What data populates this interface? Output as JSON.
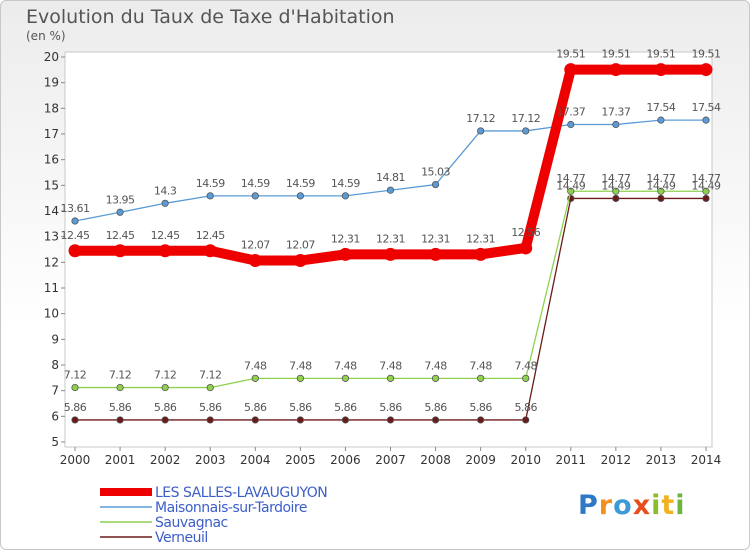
{
  "title": "Evolution du Taux de Taxe d'Habitation",
  "subtitle": "(en %)",
  "logo": "Proxiti",
  "chart_data": {
    "type": "line",
    "title": "Evolution du Taux de Taxe d'Habitation",
    "ylabel": "(en %)",
    "xlabel": "",
    "x": [
      2000,
      2001,
      2002,
      2003,
      2004,
      2005,
      2006,
      2007,
      2008,
      2009,
      2010,
      2011,
      2012,
      2013,
      2014
    ],
    "ylim": [
      5,
      20
    ],
    "yticks": [
      5,
      6,
      7,
      8,
      9,
      10,
      11,
      12,
      13,
      14,
      15,
      16,
      17,
      18,
      19,
      20
    ],
    "grid": false,
    "legend_position": "bottom-left",
    "series": [
      {
        "name": "Verneuil",
        "color": "#6b1a1a",
        "values": [
          5.86,
          5.86,
          5.86,
          5.86,
          5.86,
          5.86,
          5.86,
          5.86,
          5.86,
          5.86,
          5.86,
          14.49,
          14.49,
          14.49,
          14.49
        ],
        "labels": [
          "5.86",
          "5.86",
          "5.86",
          "5.86",
          "5.86",
          "5.86",
          "5.86",
          "5.86",
          "5.86",
          "5.86",
          "5.86",
          "14.49",
          "14.49",
          "14.49",
          "14.49"
        ]
      },
      {
        "name": "Sauvagnac",
        "color": "#8fd14f",
        "values": [
          7.12,
          7.12,
          7.12,
          7.12,
          7.48,
          7.48,
          7.48,
          7.48,
          7.48,
          7.48,
          7.48,
          14.77,
          14.77,
          14.77,
          14.77
        ],
        "labels": [
          "7.12",
          "7.12",
          "7.12",
          "7.12",
          "7.48",
          "7.48",
          "7.48",
          "7.48",
          "7.48",
          "7.48",
          "7.48",
          "14.77",
          "14.77",
          "14.77",
          "14.77"
        ]
      },
      {
        "name": "Maisonnais-sur-Tardoire",
        "color": "#5b9bd5",
        "values": [
          13.61,
          13.95,
          14.3,
          14.59,
          14.59,
          14.59,
          14.59,
          14.81,
          15.03,
          17.12,
          17.12,
          17.37,
          17.37,
          17.54,
          17.54
        ],
        "labels": [
          "13.61",
          "13.95",
          "14.3",
          "14.59",
          "14.59",
          "14.59",
          "14.59",
          "14.81",
          "15.03",
          "17.12",
          "17.12",
          "17.37",
          "17.37",
          "17.54",
          "17.54"
        ]
      },
      {
        "name": "LES SALLES-LAVAUGUYON",
        "color": "#ee0000",
        "values": [
          12.45,
          12.45,
          12.45,
          12.45,
          12.07,
          12.07,
          12.31,
          12.31,
          12.31,
          12.31,
          12.56,
          19.51,
          19.51,
          19.51,
          19.51
        ],
        "labels": [
          "12.45",
          "12.45",
          "12.45",
          "12.45",
          "12.07",
          "12.07",
          "12.31",
          "12.31",
          "12.31",
          "12.31",
          "12.56",
          "19.51",
          "19.51",
          "19.51",
          "19.51"
        ]
      }
    ],
    "legend": [
      "LES SALLES-LAVAUGUYON",
      "Maisonnais-sur-Tardoire",
      "Sauvagnac",
      "Verneuil"
    ]
  }
}
